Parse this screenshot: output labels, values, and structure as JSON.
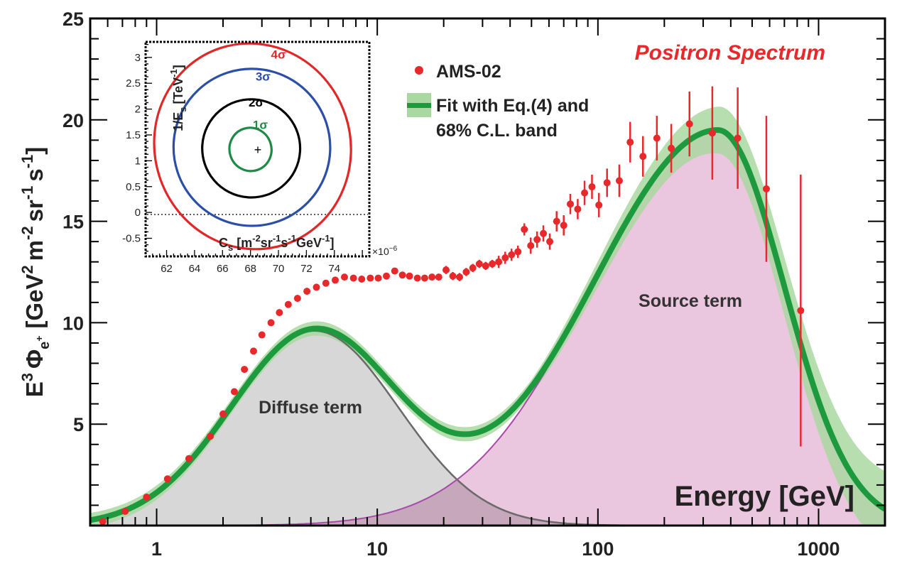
{
  "chart_data": [
    {
      "type": "line",
      "title": "Positron Spectrum",
      "xlabel": "Energy [GeV]",
      "ylabel": "Ẽ³ Φ_e+ [GeV² m⁻² sr⁻¹ s⁻¹]",
      "ylabel_parts": {
        "e": "E",
        "e_sup": "3",
        "phi": "Φ",
        "e_sub": "e",
        "e_sub_sup": "+",
        "unit_open": "[GeV",
        "gev_sup": "2",
        "m": "m",
        "m_sup": "-2",
        "sr": "sr",
        "sr_sup": "-1",
        "s": "s",
        "s_sup": "-1",
        "close": "]"
      },
      "x_scale": "log",
      "xlim": [
        0.5,
        2000
      ],
      "ylim": [
        0,
        25
      ],
      "x_tick_labels": [
        "1",
        "10",
        "100",
        "1000"
      ],
      "y_tick_labels": [
        "5",
        "10",
        "15",
        "20",
        "25"
      ],
      "y_ticks": [
        5,
        10,
        15,
        20,
        25
      ],
      "x_ticks": [
        1,
        10,
        100,
        1000
      ],
      "grid": false,
      "legend_position": "top-center",
      "annotations": [
        "Diffuse term",
        "Source term"
      ],
      "series": [
        {
          "name": "AMS-02",
          "type": "scatter",
          "color": "#e8282b",
          "points": [
            [
              0.57,
              0.2,
              0.1
            ],
            [
              0.72,
              0.7,
              0.1
            ],
            [
              0.9,
              1.4,
              0.1
            ],
            [
              1.12,
              2.3,
              0.1
            ],
            [
              1.4,
              3.3,
              0.1
            ],
            [
              1.75,
              4.4,
              0.1
            ],
            [
              2.0,
              5.5,
              0.1
            ],
            [
              2.25,
              6.6,
              0.1
            ],
            [
              2.5,
              7.7,
              0.1
            ],
            [
              2.75,
              8.6,
              0.1
            ],
            [
              3.0,
              9.4,
              0.1
            ],
            [
              3.3,
              10.0,
              0.1
            ],
            [
              3.6,
              10.5,
              0.1
            ],
            [
              3.95,
              10.9,
              0.1
            ],
            [
              4.35,
              11.2,
              0.1
            ],
            [
              4.8,
              11.55,
              0.1
            ],
            [
              5.3,
              11.75,
              0.1
            ],
            [
              5.85,
              11.95,
              0.1
            ],
            [
              6.45,
              12.1,
              0.1
            ],
            [
              7.1,
              12.25,
              0.1
            ],
            [
              7.8,
              12.2,
              0.1
            ],
            [
              8.5,
              12.15,
              0.1
            ],
            [
              9.3,
              12.2,
              0.1
            ],
            [
              10.1,
              12.2,
              0.1
            ],
            [
              11.0,
              12.3,
              0.1
            ],
            [
              12.0,
              12.55,
              0.1
            ],
            [
              13.0,
              12.35,
              0.1
            ],
            [
              14.0,
              12.3,
              0.1
            ],
            [
              15.2,
              12.2,
              0.1
            ],
            [
              16.4,
              12.2,
              0.1
            ],
            [
              17.7,
              12.25,
              0.1
            ],
            [
              19.0,
              12.25,
              0.1
            ],
            [
              20.5,
              12.6,
              0.2
            ],
            [
              22.0,
              12.3,
              0.2
            ],
            [
              23.6,
              12.25,
              0.2
            ],
            [
              25.3,
              12.5,
              0.2
            ],
            [
              27.1,
              12.7,
              0.2
            ],
            [
              29.0,
              12.9,
              0.2
            ],
            [
              31.0,
              12.8,
              0.2
            ],
            [
              33.2,
              12.9,
              0.2
            ],
            [
              35.5,
              13.0,
              0.3
            ],
            [
              38.0,
              13.2,
              0.3
            ],
            [
              40.6,
              13.35,
              0.3
            ],
            [
              43.4,
              13.5,
              0.3
            ],
            [
              46.4,
              14.6,
              0.3
            ],
            [
              49.6,
              13.8,
              0.4
            ],
            [
              53.0,
              14.1,
              0.4
            ],
            [
              56.6,
              14.4,
              0.4
            ],
            [
              60.5,
              14.0,
              0.4
            ],
            [
              65.0,
              15.0,
              0.5
            ],
            [
              70.0,
              14.8,
              0.5
            ],
            [
              75.0,
              15.85,
              0.5
            ],
            [
              81.0,
              15.6,
              0.5
            ],
            [
              87.0,
              16.4,
              0.6
            ],
            [
              94.0,
              16.7,
              0.6
            ],
            [
              101,
              15.8,
              0.6
            ],
            [
              110,
              16.9,
              0.7
            ],
            [
              125,
              17.0,
              0.8
            ],
            [
              140,
              18.9,
              1.0
            ],
            [
              160,
              18.2,
              1.0
            ],
            [
              185,
              19.1,
              1.1
            ],
            [
              215,
              18.6,
              1.2
            ],
            [
              260,
              19.8,
              1.6
            ],
            [
              330,
              19.35,
              2.3
            ],
            [
              430,
              19.1,
              2.5
            ],
            [
              580,
              16.6,
              3.6
            ],
            [
              830,
              10.6,
              6.7
            ]
          ]
        },
        {
          "name": "Fit with Eq.(4) and 68% C.L. band",
          "type": "line",
          "color": "#1d9a3e",
          "band_color": "#a9d8a0"
        }
      ],
      "components": [
        {
          "name": "Diffuse term",
          "fill": "#d5d5d5",
          "line": "#6a6a6a",
          "peak_x": 5.2,
          "peak_y": 9.6
        },
        {
          "name": "Source term",
          "fill": "#e7bcd9",
          "line": "#a84aa8",
          "peak_x": 350,
          "peak_y": 19.5
        }
      ]
    },
    {
      "type": "contour",
      "xlabel": "C_s [m^-2 sr^-1 s^-1 GeV^-1]",
      "xlabel_parts": {
        "c": "C",
        "c_sub": "s",
        "open": "[m",
        "m_sup": "-2",
        "sr": "sr",
        "sr_sup": "-1",
        "s": "s",
        "s_sup": "-1",
        "gev": "GeV",
        "gev_sup": "-1",
        "close": "]"
      },
      "ylabel": "1/E_s [TeV^-1]",
      "ylabel_parts": {
        "pre": "1/E",
        "sub": "s",
        "open": "[TeV",
        "sup": "-1",
        "close": "]"
      },
      "x_multiplier": "×10⁻⁶",
      "xlim": [
        60.5,
        76.5
      ],
      "ylim": [
        -0.85,
        3.3
      ],
      "x_tick_labels": [
        "62",
        "64",
        "66",
        "68",
        "70",
        "72",
        "74"
      ],
      "x_ticks": [
        62,
        64,
        66,
        68,
        70,
        72,
        74
      ],
      "y_tick_labels": [
        "-0.5",
        "0",
        "0.5",
        "1",
        "1.5",
        "2",
        "2.5",
        "3"
      ],
      "y_ticks": [
        -0.5,
        0,
        0.5,
        1,
        1.5,
        2,
        2.5,
        3
      ],
      "best_fit": [
        68.0,
        1.22
      ],
      "contours": [
        {
          "label": "1σ",
          "color": "#1d8a45"
        },
        {
          "label": "2σ",
          "color": "#000000"
        },
        {
          "label": "3σ",
          "color": "#2b4ea8"
        },
        {
          "label": "4σ",
          "color": "#e02828"
        }
      ]
    }
  ],
  "labels": {
    "title": "Positron Spectrum",
    "xlabel": "Energy [GeV]",
    "legend_data": "AMS-02",
    "legend_fit_line1": "Fit with Eq.(4) and",
    "legend_fit_line2": "68% C.L. band",
    "diffuse": "Diffuse term",
    "source": "Source term",
    "multiplier": "×10"
  },
  "colors": {
    "title": "#e8282b",
    "data": "#e8282b",
    "fit": "#1d9a3e",
    "band": "#a9d8a0",
    "diffuse_fill": "#d5d5d5",
    "source_fill": "#e7bcd9"
  }
}
